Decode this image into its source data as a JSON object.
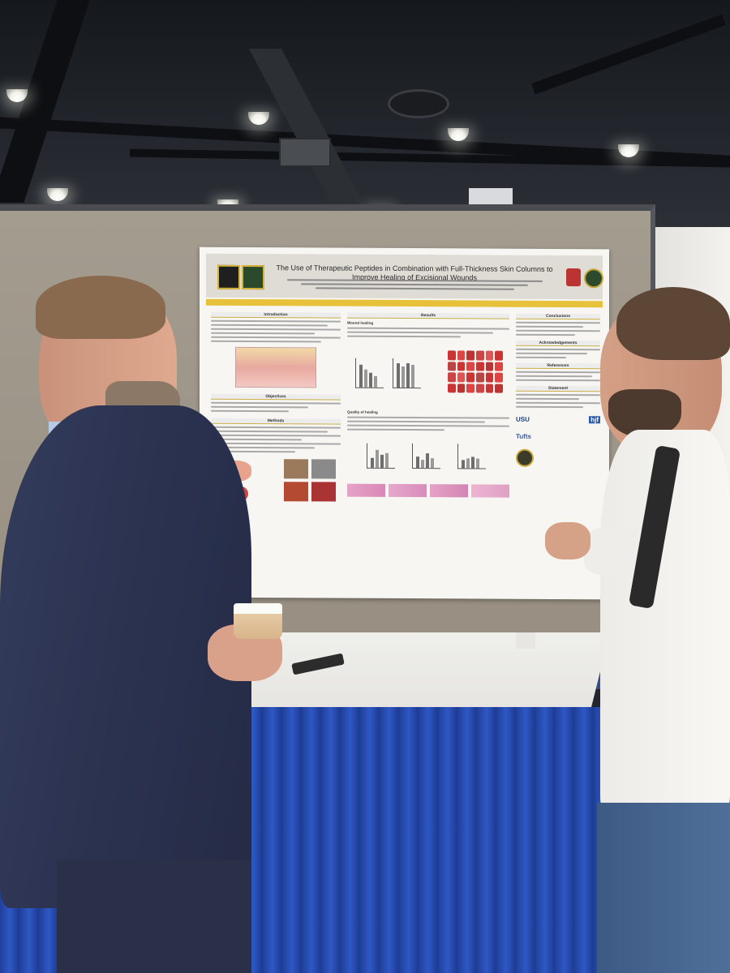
{
  "poster": {
    "title": "The Use of Therapeutic Peptides in Combination with Full-Thickness Skin Columns to Improve Healing of Excisional Wounds",
    "sections_left": [
      "Introduction",
      "Objectives",
      "Methods"
    ],
    "sections_mid": [
      "Results",
      "Wound healing",
      "Quality of healing"
    ],
    "sections_right": [
      "Conclusions",
      "Acknowledgements",
      "References",
      "Statement"
    ],
    "logos": [
      "USU",
      "hjf",
      "Tufts"
    ]
  },
  "colors": {
    "disclaimer_band": "#e8c13a",
    "table_skirt": "#2f58c4",
    "blazer": "#2e3550"
  }
}
